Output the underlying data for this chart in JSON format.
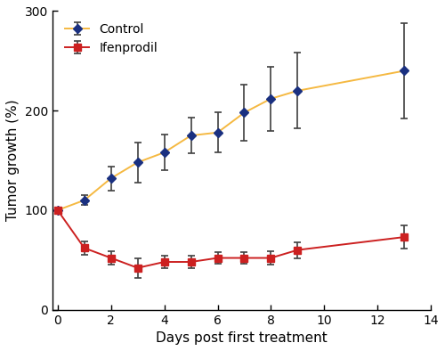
{
  "control_x": [
    0,
    1,
    2,
    3,
    4,
    5,
    6,
    7,
    8,
    9,
    13
  ],
  "control_y": [
    100,
    110,
    132,
    148,
    158,
    175,
    178,
    198,
    212,
    220,
    240
  ],
  "control_yerr": [
    0,
    5,
    12,
    20,
    18,
    18,
    20,
    28,
    32,
    38,
    48
  ],
  "ifenprodil_x": [
    0,
    1,
    2,
    3,
    4,
    5,
    6,
    7,
    8,
    9,
    13
  ],
  "ifenprodil_y": [
    100,
    62,
    52,
    42,
    48,
    48,
    52,
    52,
    52,
    60,
    73
  ],
  "ifenprodil_yerr": [
    0,
    7,
    7,
    10,
    6,
    6,
    6,
    6,
    7,
    8,
    12
  ],
  "control_line_color": "#f5b942",
  "control_marker_color": "#1a3080",
  "control_ecolor": "#404040",
  "ifenprodil_line_color": "#cc2020",
  "ifenprodil_marker_color": "#cc2020",
  "ifenprodil_ecolor": "#404040",
  "xlabel": "Days post first treatment",
  "ylabel": "Tumor growth (%)",
  "xlim": [
    -0.2,
    14
  ],
  "ylim": [
    0,
    300
  ],
  "xticks": [
    0,
    2,
    4,
    6,
    8,
    10,
    12,
    14
  ],
  "yticks": [
    0,
    100,
    200,
    300
  ],
  "legend_labels": [
    "Control",
    "Ifenprodil"
  ],
  "figsize": [
    5.0,
    3.94
  ],
  "dpi": 100
}
